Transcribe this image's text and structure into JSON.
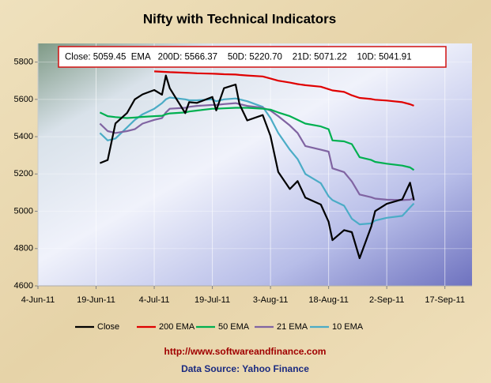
{
  "chart_data": {
    "type": "line",
    "title": "Nifty with Technical Indicators",
    "annotation": "Close: 5059.45  EMA   200D: 5566.37    50D: 5220.70    21D: 5071.22    10D: 5041.91",
    "x": [
      "2011-06-20",
      "2011-06-22",
      "2011-06-24",
      "2011-06-27",
      "2011-06-29",
      "2011-07-01",
      "2011-07-04",
      "2011-07-06",
      "2011-07-07",
      "2011-07-08",
      "2011-07-12",
      "2011-07-13",
      "2011-07-15",
      "2011-07-19",
      "2011-07-20",
      "2011-07-22",
      "2011-07-25",
      "2011-07-26",
      "2011-07-28",
      "2011-08-01",
      "2011-08-03",
      "2011-08-05",
      "2011-08-08",
      "2011-08-10",
      "2011-08-12",
      "2011-08-16",
      "2011-08-18",
      "2011-08-19",
      "2011-08-22",
      "2011-08-24",
      "2011-08-26",
      "2011-08-29",
      "2011-08-30",
      "2011-09-02",
      "2011-09-06",
      "2011-09-08",
      "2011-09-09"
    ],
    "series": [
      {
        "name": "Close",
        "color": "#000000",
        "values": [
          5258,
          5275,
          5471,
          5527,
          5600,
          5627,
          5650,
          5625,
          5728,
          5660,
          5526,
          5585,
          5581,
          5613,
          5541,
          5660,
          5680,
          5574,
          5487,
          5516,
          5404,
          5211,
          5119,
          5162,
          5073,
          5036,
          4944,
          4845,
          4899,
          4888,
          4748,
          4919,
          5001,
          5040,
          5064,
          5153,
          5059
        ]
      },
      {
        "name": "200 EMA",
        "color": "#e00000",
        "values": [
          null,
          null,
          null,
          null,
          null,
          null,
          5750,
          5748,
          5747,
          5746,
          5743,
          5742,
          5740,
          5738,
          5737,
          5735,
          5733,
          5731,
          5728,
          5723,
          5712,
          5700,
          5690,
          5682,
          5676,
          5668,
          5655,
          5648,
          5640,
          5622,
          5608,
          5602,
          5598,
          5594,
          5585,
          5574,
          5566
        ]
      },
      {
        "name": "50 EMA",
        "color": "#00b050",
        "values": [
          5530,
          5510,
          5505,
          5500,
          5503,
          5506,
          5510,
          5512,
          5520,
          5525,
          5530,
          5535,
          5540,
          5550,
          5550,
          5552,
          5555,
          5555,
          5555,
          5550,
          5545,
          5530,
          5510,
          5490,
          5470,
          5455,
          5440,
          5380,
          5375,
          5360,
          5290,
          5275,
          5265,
          5255,
          5245,
          5235,
          5221
        ]
      },
      {
        "name": "21 EMA",
        "color": "#8064a2",
        "values": [
          5470,
          5430,
          5420,
          5430,
          5440,
          5470,
          5490,
          5500,
          5530,
          5550,
          5555,
          5560,
          5565,
          5570,
          5570,
          5575,
          5580,
          5575,
          5565,
          5555,
          5540,
          5510,
          5460,
          5420,
          5350,
          5330,
          5320,
          5230,
          5210,
          5160,
          5090,
          5075,
          5068,
          5062,
          5060,
          5062,
          5071
        ]
      },
      {
        "name": "10 EMA",
        "color": "#4bacc6",
        "values": [
          5420,
          5380,
          5390,
          5450,
          5490,
          5520,
          5550,
          5580,
          5600,
          5610,
          5600,
          5595,
          5595,
          5600,
          5590,
          5600,
          5605,
          5600,
          5590,
          5560,
          5500,
          5420,
          5330,
          5280,
          5200,
          5150,
          5080,
          5060,
          5030,
          4960,
          4930,
          4935,
          4950,
          4965,
          4975,
          5020,
          5042
        ]
      }
    ],
    "xlim": [
      "2011-06-04",
      "2011-09-24"
    ],
    "xticks": [
      {
        "value": "2011-06-04",
        "label": "4-Jun-11"
      },
      {
        "value": "2011-06-19",
        "label": "19-Jun-11"
      },
      {
        "value": "2011-07-04",
        "label": "4-Jul-11"
      },
      {
        "value": "2011-07-19",
        "label": "19-Jul-11"
      },
      {
        "value": "2011-08-03",
        "label": "3-Aug-11"
      },
      {
        "value": "2011-08-18",
        "label": "18-Aug-11"
      },
      {
        "value": "2011-09-02",
        "label": "2-Sep-11"
      },
      {
        "value": "2011-09-17",
        "label": "17-Sep-11"
      }
    ],
    "ylim": [
      4600,
      5900
    ],
    "yticks": [
      4600,
      4800,
      5000,
      5200,
      5400,
      5600,
      5800
    ],
    "grid": true,
    "legend": "bottom",
    "footer_url": "http://www.softwareandfinance.com",
    "footer_source": "Data Source: Yahoo Finance"
  }
}
